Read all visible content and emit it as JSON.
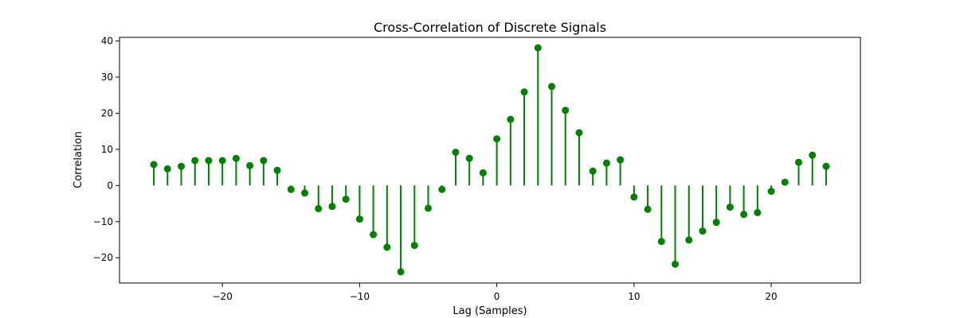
{
  "chart_data": {
    "type": "stem",
    "title": "Cross-Correlation of Discrete Signals",
    "xlabel": "Lag (Samples)",
    "ylabel": "Correlation",
    "xlim": [
      -27.5,
      26.5
    ],
    "ylim": [
      -27,
      41
    ],
    "xticks": [
      -20,
      -10,
      0,
      10,
      20
    ],
    "xtick_labels": [
      "−20",
      "−10",
      "0",
      "10",
      "20"
    ],
    "yticks": [
      -20,
      -10,
      0,
      10,
      20,
      30,
      40
    ],
    "ytick_labels": [
      "−20",
      "−10",
      "0",
      "10",
      "20",
      "30",
      "40"
    ],
    "grid": false,
    "legend": "none",
    "color": "#008000",
    "x": [
      -25,
      -24,
      -23,
      -22,
      -21,
      -20,
      -19,
      -18,
      -17,
      -16,
      -15,
      -14,
      -13,
      -12,
      -11,
      -10,
      -9,
      -8,
      -7,
      -6,
      -5,
      -4,
      -3,
      -2,
      -1,
      0,
      1,
      2,
      3,
      4,
      5,
      6,
      7,
      8,
      9,
      10,
      11,
      12,
      13,
      14,
      15,
      16,
      17,
      18,
      19,
      20,
      21,
      22,
      23,
      24
    ],
    "values": [
      5.8,
      4.6,
      5.3,
      6.9,
      6.9,
      6.9,
      7.5,
      5.5,
      6.9,
      4.2,
      -1.1,
      -2.1,
      -6.4,
      -5.8,
      -3.8,
      -9.3,
      -13.6,
      -17.1,
      -23.9,
      -16.6,
      -6.3,
      -1.1,
      9.2,
      7.5,
      3.5,
      12.9,
      18.3,
      25.9,
      38.1,
      27.4,
      20.8,
      14.6,
      4.0,
      6.2,
      7.1,
      -3.2,
      -6.6,
      -15.5,
      -21.8,
      -15.1,
      -12.6,
      -10.2,
      -6.0,
      -8.0,
      -7.5,
      -1.6,
      0.9,
      6.4,
      8.4,
      5.3
    ]
  }
}
